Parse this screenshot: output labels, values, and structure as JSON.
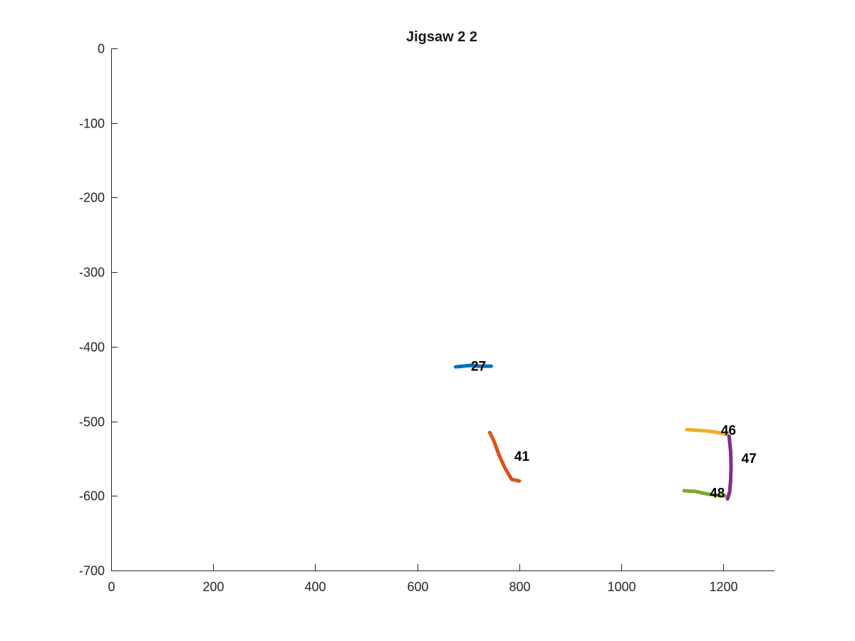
{
  "chart_data": {
    "type": "line",
    "title": "Jigsaw 2 2",
    "xlabel": "",
    "ylabel": "",
    "xlim": [
      0,
      1300
    ],
    "ylim": [
      -700,
      0
    ],
    "xticks": [
      0,
      200,
      400,
      600,
      800,
      1000,
      1200
    ],
    "yticks": [
      0,
      -100,
      -200,
      -300,
      -400,
      -500,
      -600,
      -700
    ],
    "grid": false,
    "series": [
      {
        "label": "27",
        "color": "#0072BD",
        "points": [
          [
            675,
            -427
          ],
          [
            690,
            -426
          ],
          [
            705,
            -425
          ],
          [
            720,
            -426
          ],
          [
            735,
            -426
          ],
          [
            745,
            -426
          ]
        ],
        "label_pos": [
          720,
          -432
        ]
      },
      {
        "label": "41",
        "color": "#D95319",
        "points": [
          [
            742,
            -515
          ],
          [
            750,
            -526
          ],
          [
            760,
            -545
          ],
          [
            772,
            -563
          ],
          [
            785,
            -578
          ],
          [
            800,
            -580
          ]
        ],
        "label_pos": [
          805,
          -553
        ]
      },
      {
        "label": "46",
        "color": "#EDB120",
        "points": [
          [
            1128,
            -511
          ],
          [
            1150,
            -512
          ],
          [
            1170,
            -513
          ],
          [
            1190,
            -515
          ],
          [
            1208,
            -518
          ]
        ],
        "label_pos": [
          1210,
          -518
        ]
      },
      {
        "label": "47",
        "color": "#7E2F8E",
        "points": [
          [
            1211,
            -520
          ],
          [
            1214,
            -540
          ],
          [
            1215,
            -560
          ],
          [
            1214,
            -580
          ],
          [
            1212,
            -595
          ],
          [
            1208,
            -604
          ]
        ],
        "label_pos": [
          1250,
          -556
        ]
      },
      {
        "label": "48",
        "color": "#77AC30",
        "points": [
          [
            1123,
            -593
          ],
          [
            1145,
            -594
          ],
          [
            1165,
            -597
          ],
          [
            1185,
            -599
          ],
          [
            1203,
            -600
          ]
        ],
        "label_pos": [
          1188,
          -602
        ]
      }
    ]
  }
}
